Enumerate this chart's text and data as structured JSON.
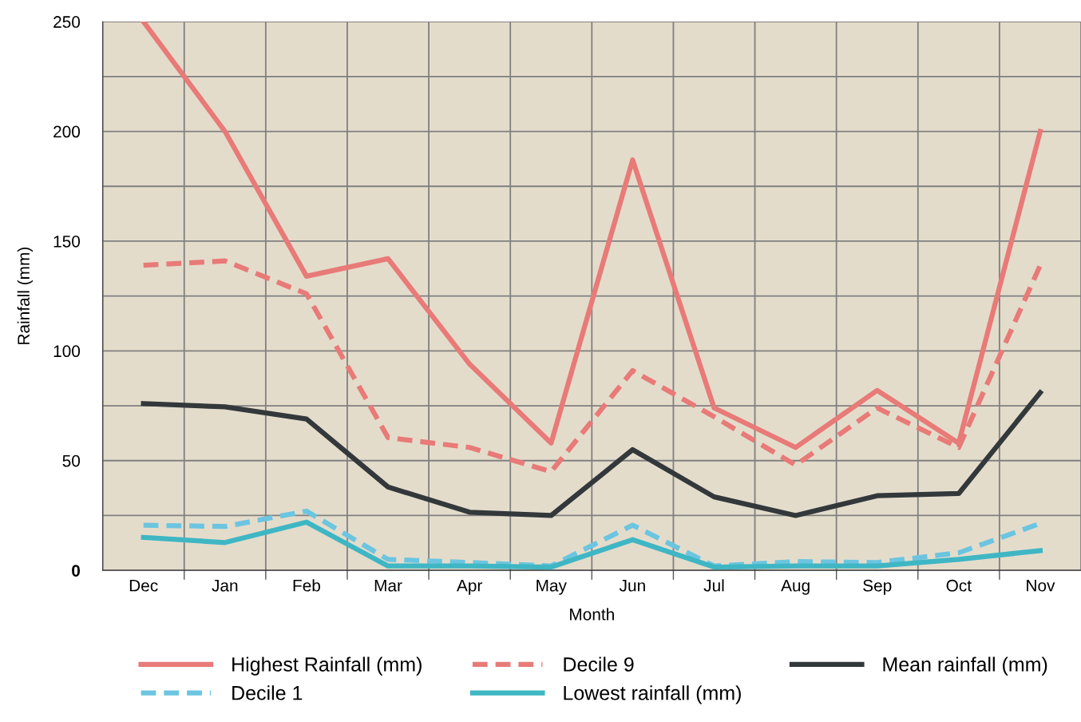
{
  "chart_data": {
    "type": "line",
    "xlabel": "Month",
    "ylabel": "Rainfall (mm)",
    "categories": [
      "Dec",
      "Jan",
      "Feb",
      "Mar",
      "Apr",
      "May",
      "Jun",
      "Jul",
      "Aug",
      "Sep",
      "Oct",
      "Nov"
    ],
    "ylim": [
      0,
      250
    ],
    "yticks": [
      {
        "value": 0,
        "label": "0"
      },
      {
        "value": 25,
        "label": null
      },
      50,
      {
        "value": 75,
        "label": null
      },
      100,
      {
        "value": 125,
        "label": null
      },
      150,
      {
        "value": 175,
        "label": null
      },
      200,
      {
        "value": 225,
        "label": null
      },
      250
    ],
    "grid": true,
    "legend": "bottom",
    "marker": "none",
    "series": [
      {
        "name": "Highest Rainfall (mm)",
        "color": "#e87a78",
        "line_style": "solid",
        "values": [
          250,
          200,
          134,
          142,
          94,
          58,
          187,
          74,
          56,
          82,
          58,
          200
        ]
      },
      {
        "name": "Decile 1",
        "color": "#6cc5e0",
        "line_style": "dashed",
        "values": [
          20.6,
          20,
          27,
          5,
          3.6,
          2,
          20.6,
          2,
          4,
          3.6,
          8,
          21.4
        ]
      },
      {
        "name": "Decile 9",
        "color": "#e87a78",
        "line_style": "dashed",
        "values": [
          139,
          141,
          126,
          60.5,
          56,
          45,
          91,
          70,
          48,
          74,
          56,
          139
        ]
      },
      {
        "name": "Lowest rainfall (mm)",
        "color": "#3fb6c4",
        "line_style": "solid",
        "values": [
          15,
          12.7,
          22,
          2,
          2,
          1.5,
          14,
          1.5,
          2,
          2,
          5,
          9
        ]
      },
      {
        "name": "Mean rainfall (mm)",
        "color": "#33383b",
        "line_style": "solid",
        "values": [
          76,
          74.5,
          69,
          38,
          26.5,
          25,
          55,
          33.5,
          25,
          34,
          35,
          81
        ]
      }
    ]
  }
}
